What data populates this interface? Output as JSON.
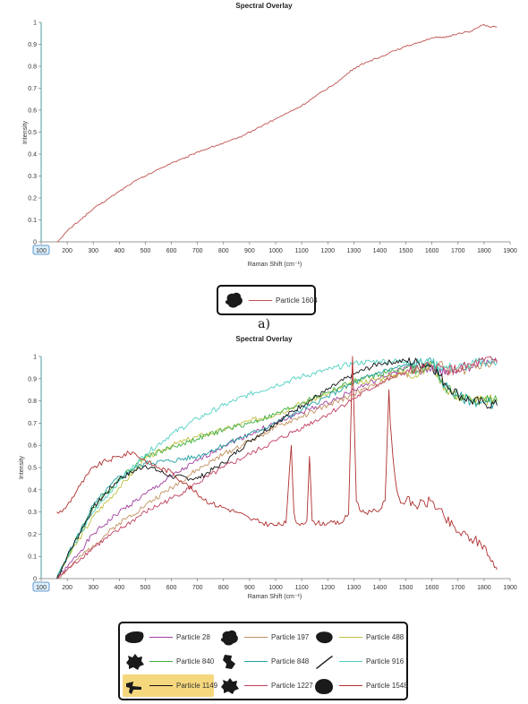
{
  "chart_data": [
    {
      "type": "line",
      "title": "Spectral Overlay",
      "xlabel": "Raman Shift (cm⁻¹)",
      "ylabel": "Intensity",
      "xlim": [
        100,
        1900
      ],
      "ylim": [
        0,
        1
      ],
      "xticks": [
        "100",
        "200",
        "300",
        "400",
        "500",
        "600",
        "700",
        "800",
        "900",
        "1000",
        "1100",
        "1200",
        "1300",
        "1400",
        "1500",
        "1600",
        "1700",
        "1800",
        "1900"
      ],
      "yticks": [
        "0",
        "0.1",
        "0.2",
        "0.3",
        "0.4",
        "0.5",
        "0.6",
        "0.7",
        "0.8",
        "0.9",
        "1"
      ],
      "grid": false,
      "series": [
        {
          "name": "Particle 1604",
          "color": "#c05050",
          "x": [
            160,
            170,
            180,
            200,
            250,
            300,
            350,
            400,
            450,
            500,
            550,
            600,
            650,
            700,
            750,
            800,
            850,
            900,
            950,
            1000,
            1050,
            1100,
            1150,
            1200,
            1250,
            1300,
            1350,
            1400,
            1450,
            1500,
            1550,
            1600,
            1650,
            1700,
            1750,
            1800,
            1820,
            1850
          ],
          "y": [
            0,
            0.01,
            0.02,
            0.05,
            0.1,
            0.15,
            0.19,
            0.23,
            0.27,
            0.3,
            0.33,
            0.36,
            0.38,
            0.41,
            0.43,
            0.45,
            0.47,
            0.5,
            0.53,
            0.56,
            0.59,
            0.62,
            0.66,
            0.7,
            0.74,
            0.79,
            0.82,
            0.84,
            0.87,
            0.89,
            0.91,
            0.93,
            0.93,
            0.95,
            0.96,
            0.99,
            0.98,
            0.98
          ]
        }
      ]
    },
    {
      "type": "line",
      "title": "Spectral Overlay",
      "xlabel": "Raman Shift (cm⁻¹)",
      "ylabel": "Intensity",
      "xlim": [
        100,
        1900
      ],
      "ylim": [
        0,
        1
      ],
      "xticks": [
        "100",
        "200",
        "300",
        "400",
        "500",
        "600",
        "700",
        "800",
        "900",
        "1000",
        "1100",
        "1200",
        "1300",
        "1400",
        "1500",
        "1600",
        "1700",
        "1800",
        "1900"
      ],
      "yticks": [
        "0",
        "0.1",
        "0.2",
        "0.3",
        "0.4",
        "0.5",
        "0.6",
        "0.7",
        "0.8",
        "0.9",
        "1"
      ],
      "grid": false,
      "series": [
        {
          "name": "Particle 28",
          "color": "#a040a0",
          "x": [
            160,
            200,
            300,
            400,
            500,
            600,
            700,
            800,
            900,
            1000,
            1100,
            1200,
            1300,
            1400,
            1500,
            1550,
            1600,
            1650,
            1700,
            1750,
            1800,
            1850
          ],
          "y": [
            0,
            0.05,
            0.2,
            0.3,
            0.38,
            0.46,
            0.53,
            0.6,
            0.65,
            0.7,
            0.75,
            0.79,
            0.85,
            0.9,
            0.95,
            0.93,
            0.95,
            0.92,
            0.94,
            0.95,
            0.98,
            0.97
          ]
        },
        {
          "name": "Particle 197",
          "color": "#c09060",
          "x": [
            160,
            200,
            300,
            400,
            500,
            600,
            700,
            800,
            900,
            1000,
            1100,
            1200,
            1300,
            1400,
            1500,
            1550,
            1600,
            1650,
            1700,
            1750,
            1800,
            1850
          ],
          "y": [
            0,
            0.04,
            0.15,
            0.25,
            0.33,
            0.41,
            0.49,
            0.56,
            0.62,
            0.68,
            0.73,
            0.78,
            0.83,
            0.88,
            0.93,
            0.94,
            0.97,
            0.95,
            0.93,
            0.95,
            0.97,
            0.98
          ]
        },
        {
          "name": "Particle 488",
          "color": "#c0c040",
          "x": [
            160,
            200,
            300,
            400,
            500,
            600,
            700,
            800,
            900,
            1000,
            1100,
            1200,
            1300,
            1400,
            1500,
            1550,
            1600,
            1650,
            1700,
            1750,
            1800,
            1850
          ],
          "y": [
            0,
            0.09,
            0.28,
            0.41,
            0.54,
            0.6,
            0.64,
            0.67,
            0.71,
            0.74,
            0.79,
            0.83,
            0.88,
            0.9,
            0.93,
            0.92,
            0.97,
            0.86,
            0.82,
            0.81,
            0.8,
            0.81
          ]
        },
        {
          "name": "Particle 840",
          "color": "#40b040",
          "x": [
            160,
            200,
            300,
            400,
            500,
            600,
            700,
            800,
            900,
            1000,
            1100,
            1200,
            1300,
            1400,
            1500,
            1550,
            1600,
            1650,
            1700,
            1750,
            1800,
            1850
          ],
          "y": [
            0,
            0.1,
            0.32,
            0.45,
            0.55,
            0.59,
            0.63,
            0.67,
            0.7,
            0.74,
            0.79,
            0.84,
            0.89,
            0.92,
            0.95,
            0.93,
            0.97,
            0.86,
            0.82,
            0.8,
            0.81,
            0.8
          ]
        },
        {
          "name": "Particle 848",
          "color": "#20a0a0",
          "x": [
            160,
            200,
            300,
            400,
            500,
            600,
            700,
            800,
            900,
            1000,
            1100,
            1200,
            1300,
            1400,
            1500,
            1550,
            1600,
            1650,
            1700,
            1750,
            1800,
            1850
          ],
          "y": [
            0,
            0.1,
            0.33,
            0.46,
            0.52,
            0.53,
            0.55,
            0.6,
            0.65,
            0.7,
            0.76,
            0.82,
            0.88,
            0.93,
            0.96,
            0.97,
            0.97,
            0.87,
            0.82,
            0.8,
            0.79,
            0.79
          ]
        },
        {
          "name": "Particle 916",
          "color": "#50d0c0",
          "x": [
            160,
            200,
            300,
            400,
            500,
            600,
            700,
            800,
            900,
            1000,
            1100,
            1200,
            1300,
            1400,
            1500,
            1550,
            1600,
            1650,
            1700,
            1750,
            1800,
            1850
          ],
          "y": [
            0,
            0.1,
            0.3,
            0.44,
            0.56,
            0.65,
            0.72,
            0.78,
            0.83,
            0.87,
            0.91,
            0.94,
            0.97,
            0.98,
            0.98,
            0.97,
            0.97,
            0.95,
            0.95,
            0.96,
            0.98,
            0.97
          ]
        },
        {
          "name": "Particle 1149",
          "color": "#101010",
          "x": [
            160,
            200,
            300,
            400,
            500,
            600,
            700,
            800,
            900,
            1000,
            1100,
            1200,
            1300,
            1400,
            1500,
            1550,
            1600,
            1650,
            1700,
            1750,
            1800,
            1850
          ],
          "y": [
            0,
            0.1,
            0.32,
            0.45,
            0.51,
            0.46,
            0.45,
            0.52,
            0.62,
            0.7,
            0.78,
            0.85,
            0.92,
            0.97,
            0.98,
            0.97,
            0.96,
            0.88,
            0.83,
            0.8,
            0.79,
            0.78
          ]
        },
        {
          "name": "Particle 1227",
          "color": "#c04060",
          "x": [
            160,
            200,
            300,
            400,
            500,
            600,
            700,
            800,
            900,
            1000,
            1100,
            1200,
            1300,
            1400,
            1500,
            1550,
            1600,
            1650,
            1700,
            1750,
            1800,
            1850
          ],
          "y": [
            0,
            0.04,
            0.14,
            0.22,
            0.3,
            0.36,
            0.43,
            0.5,
            0.56,
            0.62,
            0.68,
            0.74,
            0.81,
            0.88,
            0.93,
            0.94,
            0.96,
            0.94,
            0.94,
            0.96,
            0.98,
            0.98
          ]
        },
        {
          "name": "Particle 1548",
          "color": "#b03030",
          "x": [
            160,
            180,
            200,
            250,
            300,
            350,
            400,
            450,
            500,
            550,
            600,
            650,
            700,
            750,
            800,
            850,
            900,
            950,
            1000,
            1040,
            1060,
            1070,
            1080,
            1100,
            1120,
            1130,
            1140,
            1160,
            1200,
            1250,
            1280,
            1295,
            1300,
            1310,
            1330,
            1370,
            1400,
            1420,
            1435,
            1440,
            1450,
            1465,
            1480,
            1500,
            1550,
            1600,
            1650,
            1700,
            1750,
            1800,
            1820,
            1840,
            1850
          ],
          "y": [
            0.3,
            0.3,
            0.33,
            0.42,
            0.5,
            0.53,
            0.55,
            0.57,
            0.53,
            0.5,
            0.48,
            0.43,
            0.38,
            0.34,
            0.32,
            0.3,
            0.27,
            0.25,
            0.24,
            0.25,
            0.6,
            0.3,
            0.25,
            0.25,
            0.26,
            0.55,
            0.26,
            0.25,
            0.25,
            0.25,
            0.29,
            1.0,
            0.8,
            0.35,
            0.3,
            0.3,
            0.31,
            0.35,
            0.85,
            0.7,
            0.55,
            0.4,
            0.34,
            0.35,
            0.33,
            0.35,
            0.27,
            0.21,
            0.18,
            0.15,
            0.1,
            0.05,
            0.04
          ]
        }
      ]
    }
  ],
  "legend_a": {
    "items": [
      {
        "label": "Particle 1604",
        "color": "#c05050",
        "thumb": "blob"
      }
    ]
  },
  "caption_a": "a)",
  "legend_b": {
    "items": [
      {
        "label": "Particle 28",
        "color": "#a040a0",
        "thumb": "leaf",
        "selected": false
      },
      {
        "label": "Particle 197",
        "color": "#c09060",
        "thumb": "blob",
        "selected": false
      },
      {
        "label": "Particle 488",
        "color": "#c0c040",
        "thumb": "oval",
        "selected": false
      },
      {
        "label": "Particle 840",
        "color": "#40b040",
        "thumb": "jagged",
        "selected": false
      },
      {
        "label": "Particle 848",
        "color": "#20a0a0",
        "thumb": "angular",
        "selected": false
      },
      {
        "label": "Particle 916",
        "color": "#50d0c0",
        "thumb": "fiber",
        "selected": false
      },
      {
        "label": "Particle 1149",
        "color": "#101010",
        "thumb": "fragment",
        "selected": true
      },
      {
        "label": "Particle 1227",
        "color": "#c04060",
        "thumb": "jagged",
        "selected": false
      },
      {
        "label": "Particle 1548",
        "color": "#b03030",
        "thumb": "round",
        "selected": false
      }
    ]
  }
}
